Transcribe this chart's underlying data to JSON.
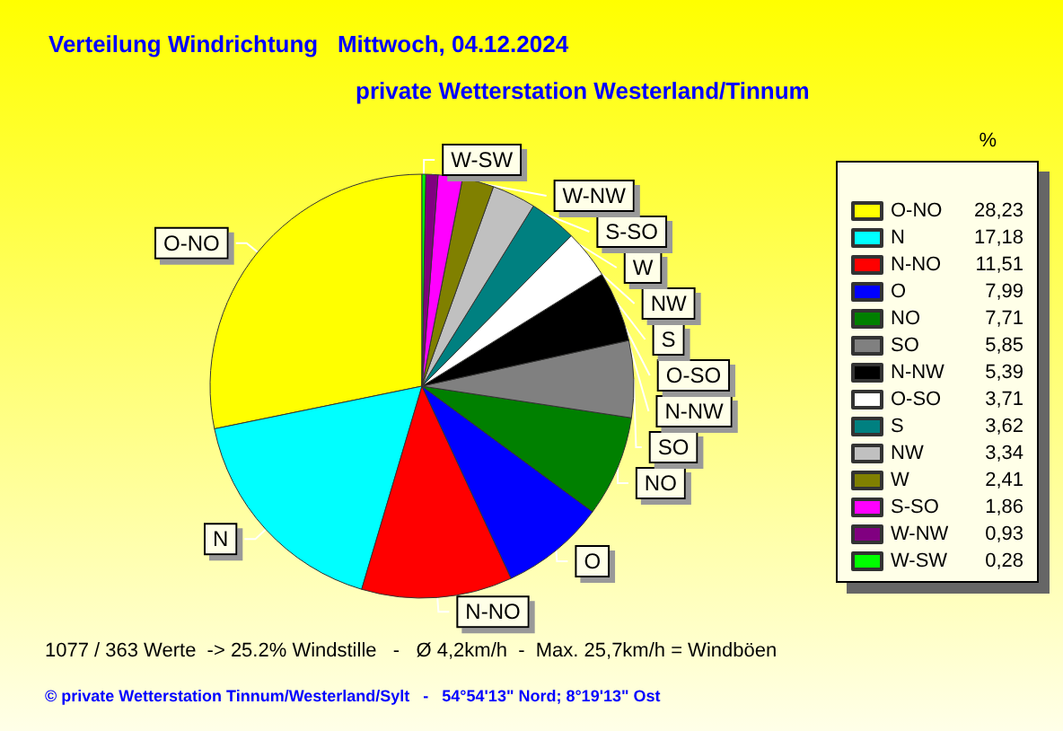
{
  "chart_data": {
    "type": "pie",
    "title": "Verteilung Windrichtung   Mittwoch, 04.12.2024",
    "subtitle": "private Wetterstation Westerland/Tinnum",
    "legend_title": "%",
    "legend": "right",
    "categories": [
      "O-NO",
      "N",
      "N-NO",
      "O",
      "NO",
      "SO",
      "N-NW",
      "O-SO",
      "S",
      "NW",
      "W",
      "S-SO",
      "W-NW",
      "W-SW"
    ],
    "values": [
      28.23,
      17.18,
      11.51,
      7.99,
      7.71,
      5.85,
      5.39,
      3.71,
      3.62,
      3.34,
      2.41,
      1.86,
      0.93,
      0.28
    ],
    "value_labels": [
      "28,23",
      "17,18",
      "11,51",
      "7,99",
      "7,71",
      "5,85",
      "5,39",
      "3,71",
      "3,62",
      "3,34",
      "2,41",
      "1,86",
      "0,93",
      "0,28"
    ],
    "colors": [
      "#ffff00",
      "#00ffff",
      "#ff0000",
      "#0000ff",
      "#008000",
      "#808080",
      "#000000",
      "#ffffff",
      "#008080",
      "#c0c0c0",
      "#808000",
      "#ff00ff",
      "#800080",
      "#00ff00"
    ],
    "annotations": [
      "1077 / 363 Werte  -> 25.2% Windstille   -   Ø 4,2km/h  -  Max. 25,7km/h = Windböen",
      "© private Wetterstation Tinnum/Westerland/Sylt   -   54°54'13\" Nord; 8°19'13\" Ost"
    ]
  }
}
